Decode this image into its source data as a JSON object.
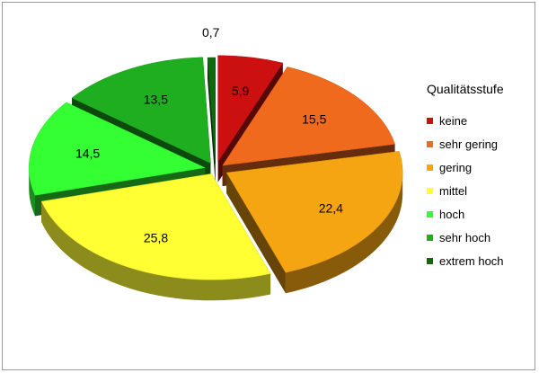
{
  "chart_data": {
    "type": "pie",
    "title": "",
    "three_d": true,
    "exploded": true,
    "legend_title": "Qualitätsstufe",
    "legend_position": "right",
    "slices": [
      {
        "label": "keine",
        "value": 5.9,
        "value_label": "5,9",
        "color": "#cc1010"
      },
      {
        "label": "sehr gering",
        "value": 15.5,
        "value_label": "15,5",
        "color": "#f06a1e"
      },
      {
        "label": "gering",
        "value": 22.4,
        "value_label": "22,4",
        "color": "#f6a512"
      },
      {
        "label": "mittel",
        "value": 25.8,
        "value_label": "25,8",
        "color": "#ffff33"
      },
      {
        "label": "hoch",
        "value": 14.5,
        "value_label": "14,5",
        "color": "#33ff33"
      },
      {
        "label": "sehr hoch",
        "value": 13.5,
        "value_label": "13,5",
        "color": "#1fae1f"
      },
      {
        "label": "extrem hoch",
        "value": 0.7,
        "value_label": "0,7",
        "color": "#0d6a0d"
      }
    ]
  }
}
